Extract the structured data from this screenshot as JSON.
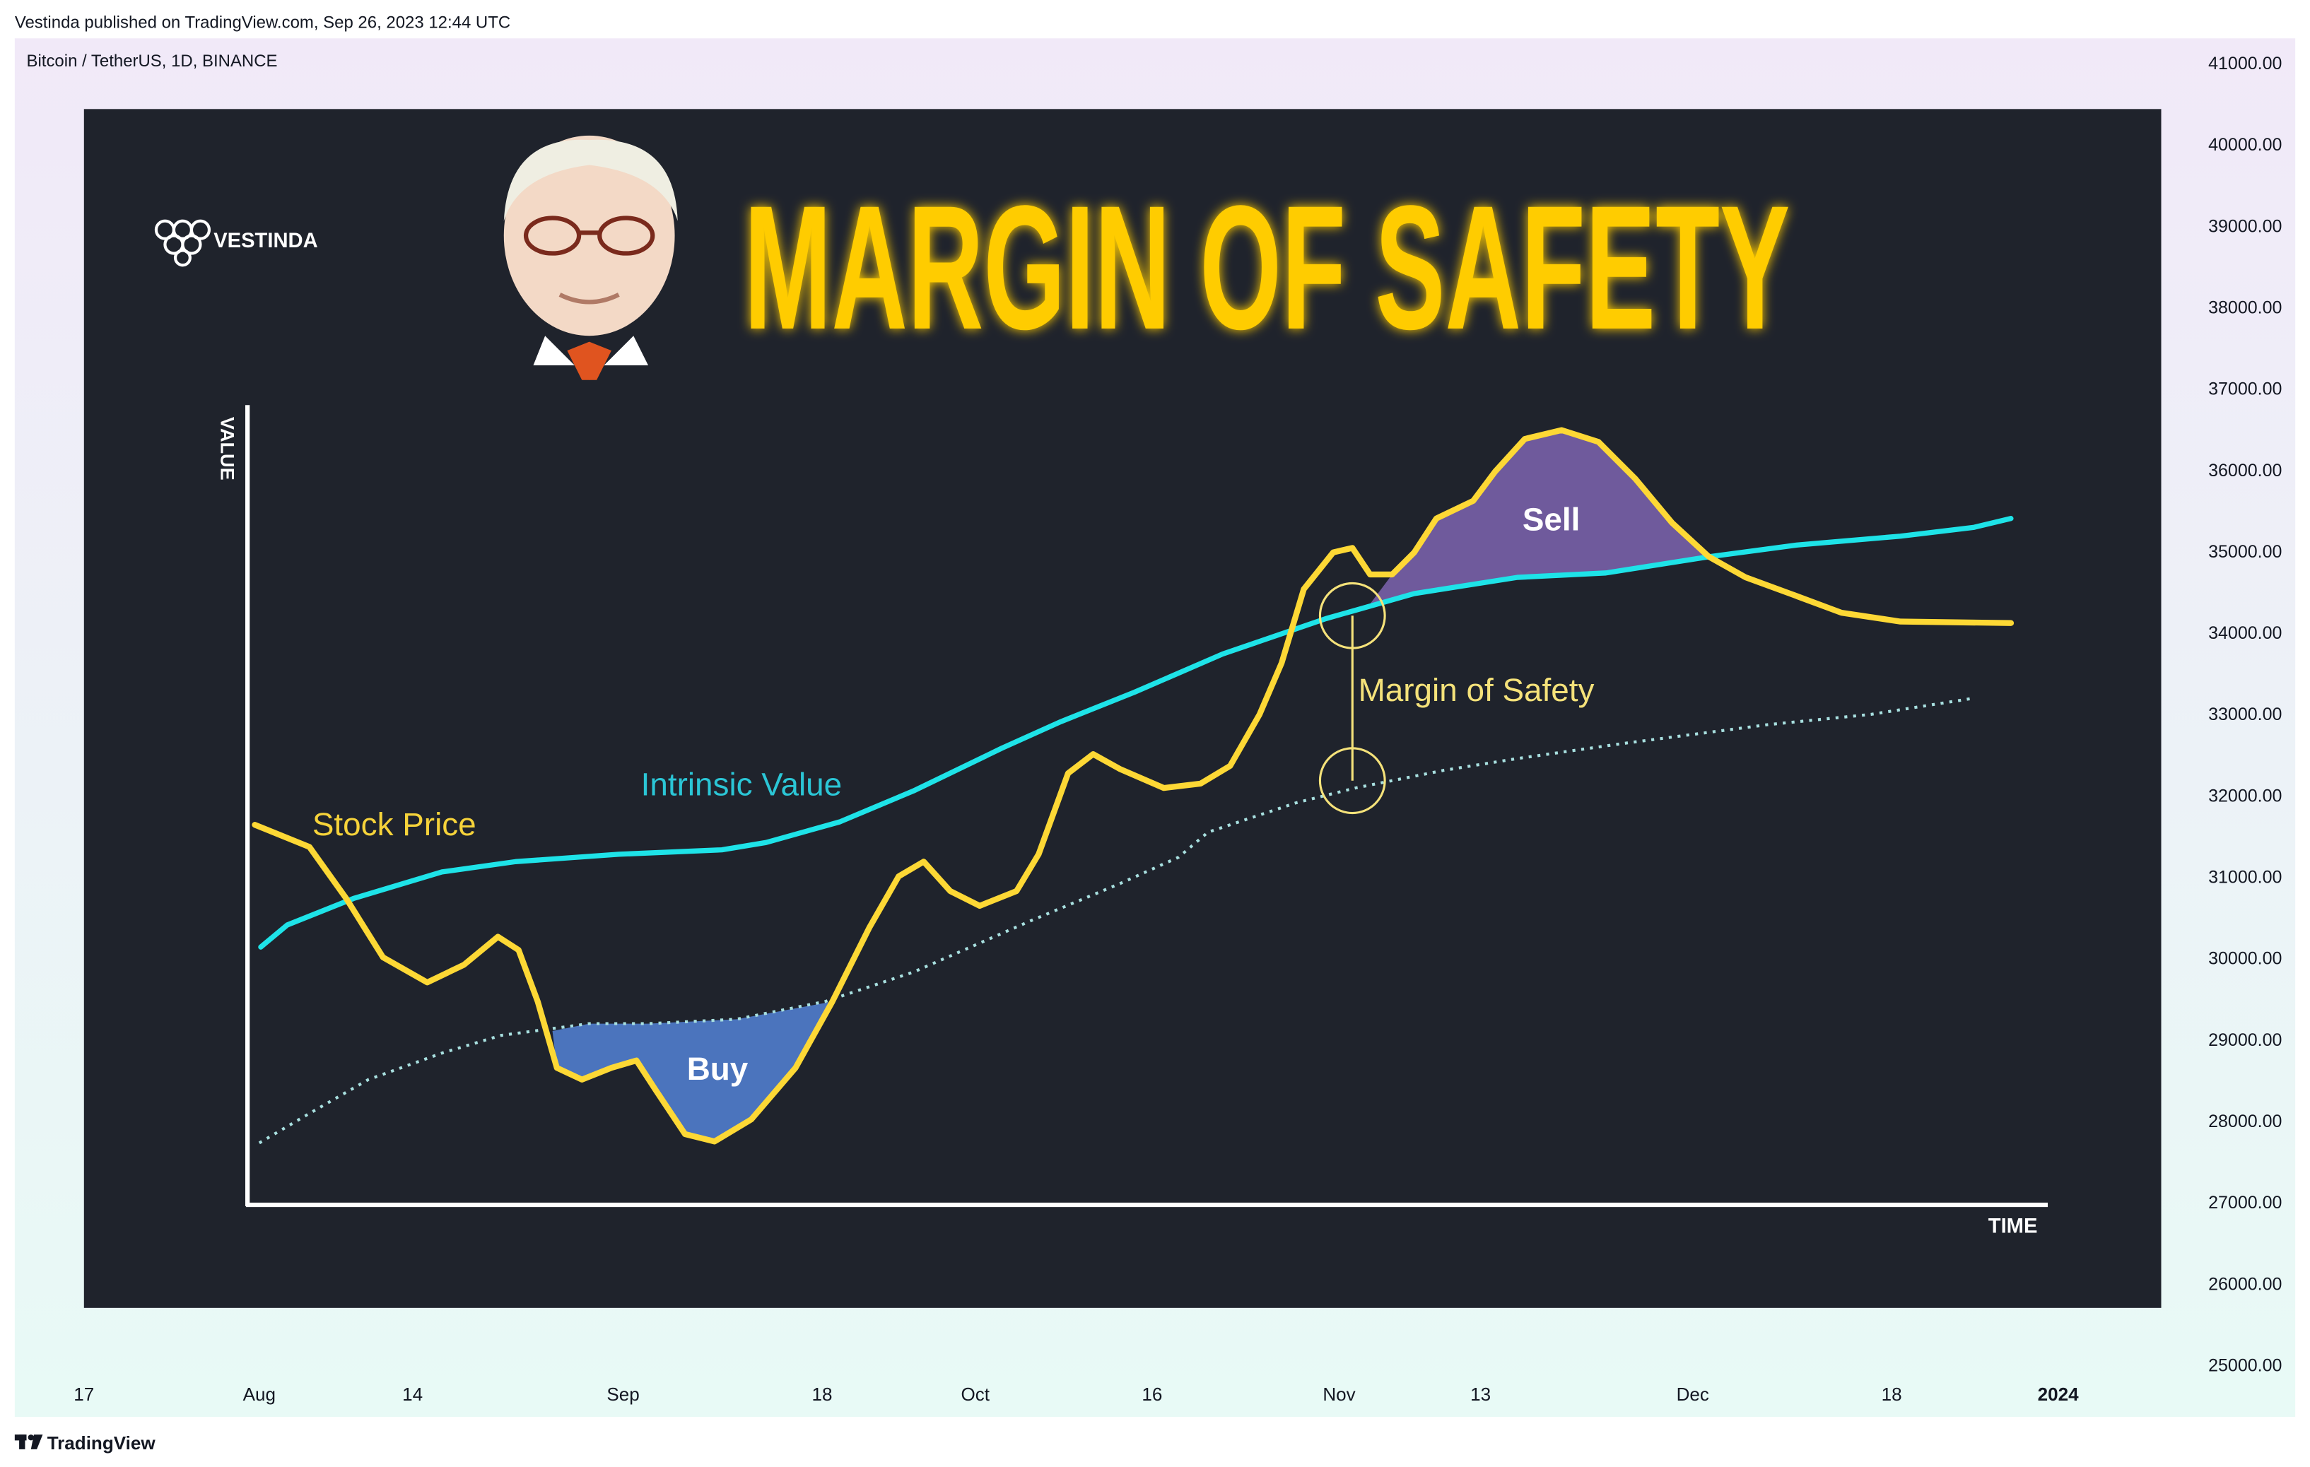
{
  "header": {
    "published": "Vestinda published on TradingView.com, Sep 26, 2023 12:44 UTC",
    "symbol": "Bitcoin / TetherUS, 1D, BINANCE"
  },
  "price_axis": [
    "41000.00",
    "40000.00",
    "39000.00",
    "38000.00",
    "37000.00",
    "36000.00",
    "35000.00",
    "34000.00",
    "33000.00",
    "32000.00",
    "31000.00",
    "30000.00",
    "29000.00",
    "28000.00",
    "27000.00",
    "26000.00",
    "25000.00"
  ],
  "time_axis": [
    "17",
    "Aug",
    "14",
    "Sep",
    "18",
    "Oct",
    "16",
    "Nov",
    "13",
    "Dec",
    "18",
    "2024"
  ],
  "illustration": {
    "logo": "VESTINDA",
    "title": "MARGIN OF SAFETY",
    "y_label": "VALUE",
    "x_label": "TIME",
    "stock_price": "Stock Price",
    "intrinsic_value": "Intrinsic Value",
    "buy": "Buy",
    "sell": "Sell",
    "margin": "Margin of Safety"
  },
  "footer": "TradingView"
}
